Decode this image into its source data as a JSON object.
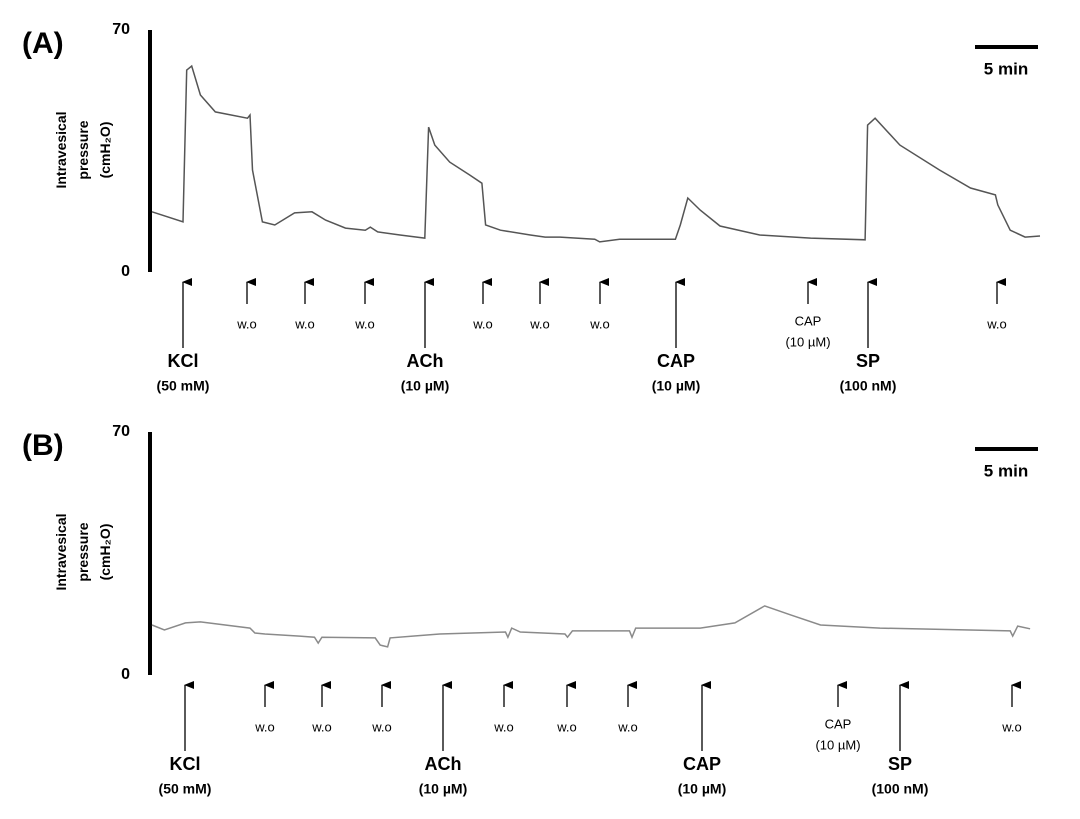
{
  "chart_data": [
    {
      "type": "line",
      "panel_label": "(A)",
      "ylabel": [
        "Intravesical",
        "pressure",
        "(cmH₂O)"
      ],
      "scale_bar": "5 min",
      "ylim": [
        0,
        70
      ],
      "yticks": [
        0,
        70
      ],
      "xlim": [
        0,
        71.6
      ],
      "color": "#555555",
      "x": [
        0,
        2.5,
        2.8,
        3.2,
        3.9,
        5.1,
        7.7,
        7.9,
        8.1,
        8.9,
        9.9,
        11.5,
        12.9,
        14.0,
        15.6,
        17.2,
        17.6,
        18.2,
        20.0,
        22.0,
        22.3,
        22.8,
        24.0,
        25.6,
        26.6,
        26.9,
        28.1,
        30.5,
        31.7,
        32.9,
        35.7,
        36.1,
        37.7,
        42.2,
        42.6,
        43.2,
        44.2,
        45.8,
        49.0,
        53.1,
        57.5,
        57.7,
        58.3,
        60.3,
        63.5,
        66.0,
        68.0,
        68.2,
        69.2,
        70.4,
        71.6
      ],
      "values": [
        17.4,
        14.5,
        58.4,
        59.6,
        51.2,
        46.3,
        44.5,
        45.4,
        29.5,
        14.5,
        13.6,
        17.1,
        17.4,
        15.0,
        12.7,
        12.1,
        13.0,
        11.6,
        10.7,
        9.8,
        41.9,
        36.7,
        31.8,
        28.1,
        25.7,
        13.6,
        12.1,
        10.7,
        10.1,
        10.1,
        9.5,
        8.7,
        9.5,
        9.5,
        13.6,
        21.4,
        17.9,
        13.3,
        10.7,
        9.8,
        9.3,
        42.5,
        44.5,
        36.7,
        29.5,
        24.3,
        22.3,
        19.4,
        12.1,
        10.1,
        10.4
      ],
      "annotations": [
        {
          "label": "KCl",
          "sublabel": "(50 mM)"
        },
        {
          "label": "w.o"
        },
        {
          "label": "w.o"
        },
        {
          "label": "w.o"
        },
        {
          "label": "ACh",
          "sublabel": "(10 µM)"
        },
        {
          "label": "w.o"
        },
        {
          "label": "w.o"
        },
        {
          "label": "w.o"
        },
        {
          "label": "CAP",
          "sublabel": "(10 µM)"
        },
        {
          "label": "CAP",
          "sublabel": "(10 µM)"
        },
        {
          "label": "SP",
          "sublabel": "(100 nM)"
        },
        {
          "label": "w.o"
        }
      ]
    },
    {
      "type": "line",
      "panel_label": "(B)",
      "ylabel": [
        "Intravesical",
        "pressure",
        "(cmH₂O)"
      ],
      "scale_bar": "5 min",
      "ylim": [
        0,
        70
      ],
      "yticks": [
        0,
        70
      ],
      "xlim": [
        0,
        71.6
      ],
      "color": "#8a8a8a",
      "x": [
        0,
        1.0,
        2.7,
        3.9,
        7.9,
        8.3,
        9.1,
        11.9,
        13.1,
        13.4,
        13.7,
        18.0,
        18.4,
        19.0,
        19.2,
        23.2,
        28.5,
        28.7,
        29.0,
        29.7,
        33.3,
        33.5,
        33.9,
        38.5,
        38.7,
        39.0,
        44.2,
        47.0,
        49.4,
        51.5,
        53.9,
        58.7,
        69.2,
        69.4,
        69.8,
        70.8
      ],
      "values": [
        14.4,
        13.0,
        15.0,
        15.3,
        13.5,
        12.1,
        11.8,
        11.2,
        10.9,
        9.2,
        10.9,
        10.7,
        8.6,
        8.1,
        10.7,
        11.8,
        12.4,
        10.9,
        13.5,
        12.4,
        11.8,
        10.9,
        12.7,
        12.7,
        10.9,
        13.5,
        13.5,
        15.0,
        19.9,
        17.3,
        14.4,
        13.5,
        12.7,
        11.2,
        14.1,
        13.3
      ],
      "annotations": [
        {
          "label": "KCl",
          "sublabel": "(50 mM)"
        },
        {
          "label": "w.o"
        },
        {
          "label": "w.o"
        },
        {
          "label": "w.o"
        },
        {
          "label": "ACh",
          "sublabel": "(10 µM)"
        },
        {
          "label": "w.o"
        },
        {
          "label": "w.o"
        },
        {
          "label": "w.o"
        },
        {
          "label": "CAP",
          "sublabel": "(10 µM)"
        },
        {
          "label": "CAP",
          "sublabel": "(10 µM)"
        },
        {
          "label": "SP",
          "sublabel": "(100 nM)"
        },
        {
          "label": "w.o"
        }
      ]
    }
  ]
}
